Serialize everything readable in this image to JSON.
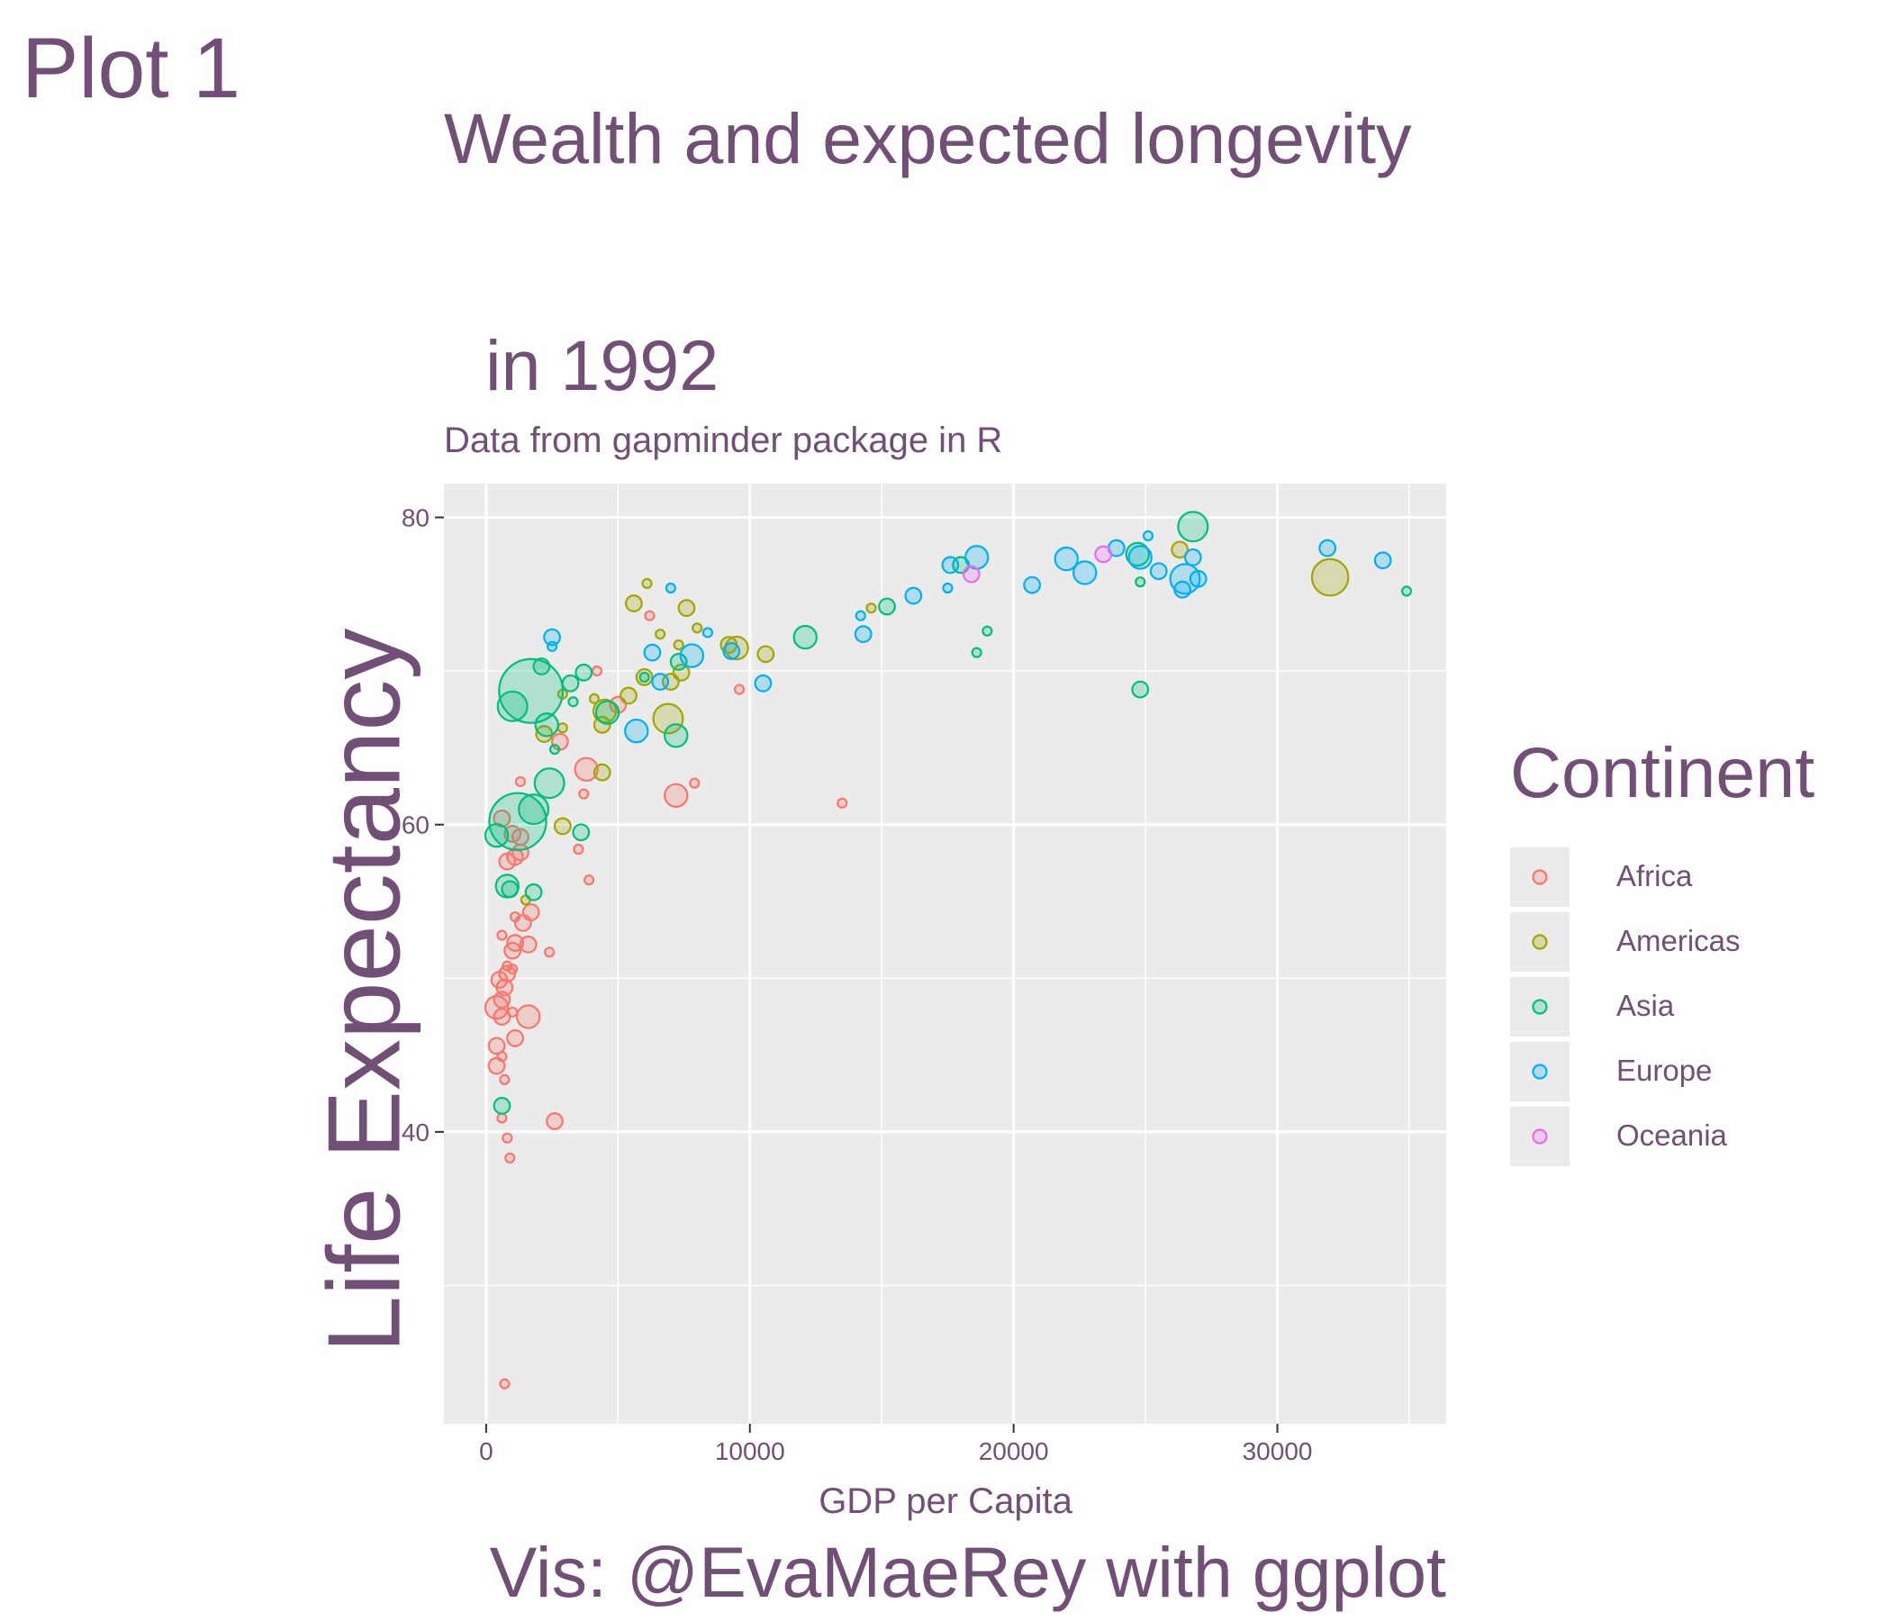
{
  "tag": "Plot 1",
  "colors": {
    "text": "#724f76",
    "panel_background": "#ebebeb",
    "grid": "#ffffff",
    "Africa": "#F8766D",
    "Americas": "#A3A500",
    "Asia": "#00BF7D",
    "Europe": "#00B0F6",
    "Oceania": "#E76BF3"
  },
  "chart_data": {
    "type": "scatter",
    "title_line1": "Wealth and expected longevity",
    "title_line2": " in 1992",
    "subtitle": "Data from gapminder package in R",
    "xlabel": "GDP per Capita",
    "ylabel": "Life Expectancy",
    "caption": "Vis: @EvaMaeRey with ggplot",
    "xlim": [
      -1600,
      36400
    ],
    "ylim": [
      21,
      82.2
    ],
    "x_ticks": [
      0,
      10000,
      20000,
      30000
    ],
    "x_tick_labels": [
      "0",
      "10000",
      "20000",
      "30000"
    ],
    "y_ticks": [
      40,
      60,
      80
    ],
    "y_tick_labels": [
      "40",
      "60",
      "80"
    ],
    "grid": true,
    "point_fill_alpha": 0.25,
    "size_encodes": "population",
    "legend": {
      "title": "Continent",
      "position": "right",
      "entries": [
        "Africa",
        "Americas",
        "Asia",
        "Europe",
        "Oceania"
      ]
    },
    "series": [
      {
        "name": "Africa",
        "points": [
          [
            700,
            23.6,
            1
          ],
          [
            900,
            38.3,
            1
          ],
          [
            800,
            39.6,
            1
          ],
          [
            600,
            40.9,
            1
          ],
          [
            2600,
            40.7,
            2
          ],
          [
            700,
            43.4,
            1
          ],
          [
            400,
            44.3,
            2
          ],
          [
            600,
            44.9,
            1
          ],
          [
            400,
            45.6,
            2
          ],
          [
            1100,
            46.1,
            2
          ],
          [
            600,
            47.5,
            2
          ],
          [
            1000,
            47.8,
            1
          ],
          [
            1600,
            47.5,
            3
          ],
          [
            400,
            48.1,
            3
          ],
          [
            600,
            48.6,
            2
          ],
          [
            700,
            49.4,
            2
          ],
          [
            500,
            49.9,
            2
          ],
          [
            800,
            50.3,
            2
          ],
          [
            1000,
            50.6,
            1
          ],
          [
            800,
            50.8,
            1
          ],
          [
            2400,
            51.7,
            1
          ],
          [
            1000,
            51.8,
            2
          ],
          [
            1100,
            52.3,
            2
          ],
          [
            1600,
            52.2,
            2
          ],
          [
            600,
            52.8,
            1
          ],
          [
            1400,
            53.6,
            2
          ],
          [
            1100,
            54.0,
            1
          ],
          [
            1700,
            54.3,
            2
          ],
          [
            3900,
            56.4,
            1
          ],
          [
            1100,
            57.9,
            2
          ],
          [
            800,
            57.6,
            2
          ],
          [
            1300,
            58.2,
            2
          ],
          [
            3500,
            58.4,
            1
          ],
          [
            1000,
            59.4,
            2
          ],
          [
            1300,
            59.2,
            2
          ],
          [
            600,
            60.4,
            2
          ],
          [
            7200,
            61.9,
            3
          ],
          [
            13500,
            61.4,
            1
          ],
          [
            3700,
            62.0,
            1
          ],
          [
            1300,
            62.8,
            1
          ],
          [
            7900,
            62.7,
            1
          ],
          [
            3800,
            63.6,
            3
          ],
          [
            2800,
            65.4,
            2
          ],
          [
            5000,
            67.8,
            2
          ],
          [
            9600,
            68.8,
            1
          ],
          [
            4200,
            70.0,
            1
          ],
          [
            6200,
            73.6,
            1
          ]
        ]
      },
      {
        "name": "Americas",
        "points": [
          [
            1500,
            55.1,
            1
          ],
          [
            2900,
            59.9,
            2
          ],
          [
            4400,
            63.4,
            2
          ],
          [
            2200,
            65.9,
            2
          ],
          [
            4400,
            66.5,
            2
          ],
          [
            2900,
            66.3,
            1
          ],
          [
            4100,
            68.2,
            1
          ],
          [
            4500,
            67.4,
            3
          ],
          [
            6900,
            66.9,
            4
          ],
          [
            5400,
            68.4,
            2
          ],
          [
            2900,
            68.5,
            1
          ],
          [
            7000,
            69.3,
            2
          ],
          [
            7400,
            69.9,
            2
          ],
          [
            6000,
            69.6,
            2
          ],
          [
            10600,
            71.1,
            2
          ],
          [
            9200,
            71.7,
            2
          ],
          [
            9500,
            71.5,
            3
          ],
          [
            8000,
            72.8,
            1
          ],
          [
            6600,
            72.4,
            1
          ],
          [
            7300,
            71.7,
            1
          ],
          [
            7600,
            74.1,
            2
          ],
          [
            5600,
            74.4,
            2
          ],
          [
            14600,
            74.1,
            1
          ],
          [
            6100,
            75.7,
            1
          ],
          [
            26300,
            77.9,
            2
          ],
          [
            32000,
            76.1,
            5
          ]
        ]
      },
      {
        "name": "Asia",
        "points": [
          [
            600,
            41.7,
            2
          ],
          [
            400,
            59.3,
            3
          ],
          [
            800,
            56.0,
            3
          ],
          [
            900,
            55.8,
            2
          ],
          [
            1800,
            55.6,
            2
          ],
          [
            1200,
            60.2,
            8
          ],
          [
            1800,
            61.0,
            4
          ],
          [
            3600,
            59.5,
            2
          ],
          [
            2400,
            62.7,
            4
          ],
          [
            2600,
            64.9,
            1
          ],
          [
            7200,
            65.8,
            3
          ],
          [
            24800,
            68.8,
            2
          ],
          [
            1000,
            67.7,
            4
          ],
          [
            1700,
            68.7,
            9
          ],
          [
            2300,
            66.5,
            3
          ],
          [
            3300,
            68.0,
            1
          ],
          [
            4600,
            67.3,
            3
          ],
          [
            6000,
            69.6,
            1
          ],
          [
            7300,
            70.6,
            2
          ],
          [
            3200,
            69.2,
            2
          ],
          [
            2100,
            70.3,
            2
          ],
          [
            3700,
            69.9,
            2
          ],
          [
            12100,
            72.2,
            3
          ],
          [
            18600,
            71.2,
            1
          ],
          [
            19000,
            72.6,
            1
          ],
          [
            15200,
            74.2,
            2
          ],
          [
            24800,
            75.8,
            1
          ],
          [
            34900,
            75.2,
            1
          ],
          [
            18000,
            76.9,
            2
          ],
          [
            24700,
            77.6,
            3
          ],
          [
            26800,
            79.4,
            4
          ]
        ]
      },
      {
        "name": "Europe",
        "points": [
          [
            2500,
            71.6,
            1
          ],
          [
            2500,
            72.2,
            2
          ],
          [
            5700,
            66.1,
            3
          ],
          [
            6600,
            69.3,
            2
          ],
          [
            7800,
            71.0,
            3
          ],
          [
            6300,
            71.2,
            2
          ],
          [
            8400,
            72.5,
            1
          ],
          [
            9300,
            71.3,
            2
          ],
          [
            10500,
            69.2,
            2
          ],
          [
            14300,
            72.4,
            2
          ],
          [
            14200,
            73.6,
            1
          ],
          [
            7000,
            75.4,
            1
          ],
          [
            16200,
            74.9,
            2
          ],
          [
            17500,
            75.4,
            1
          ],
          [
            17600,
            76.9,
            2
          ],
          [
            18600,
            77.4,
            3
          ],
          [
            20700,
            75.6,
            2
          ],
          [
            22000,
            77.3,
            3
          ],
          [
            22700,
            76.4,
            3
          ],
          [
            23900,
            78.0,
            2
          ],
          [
            25500,
            76.5,
            2
          ],
          [
            26400,
            75.3,
            2
          ],
          [
            26500,
            76.0,
            4
          ],
          [
            26800,
            77.4,
            2
          ],
          [
            27000,
            76.0,
            2
          ],
          [
            24800,
            77.4,
            3
          ],
          [
            25100,
            78.8,
            1
          ],
          [
            31900,
            78.0,
            2
          ],
          [
            34000,
            77.2,
            2
          ]
        ]
      },
      {
        "name": "Oceania",
        "points": [
          [
            18400,
            76.3,
            2
          ],
          [
            23400,
            77.6,
            2
          ]
        ]
      }
    ]
  }
}
